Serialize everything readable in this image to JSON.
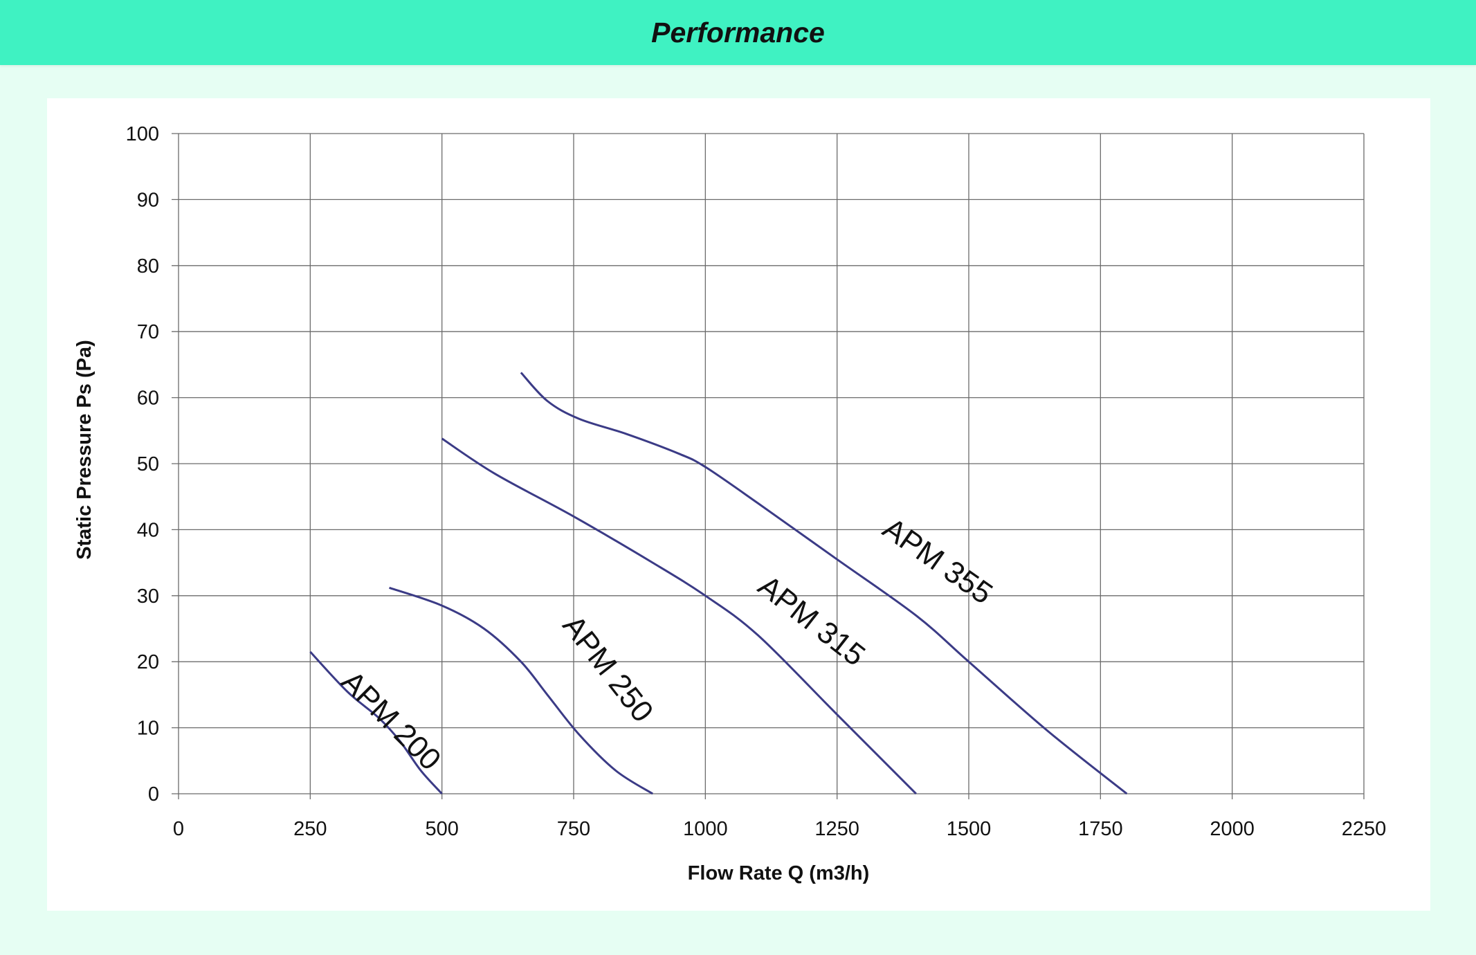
{
  "header": {
    "title": "Performance"
  },
  "colors": {
    "header_bg": "#3ff2c2",
    "page_bg": "#e6fef3",
    "grid": "#6b6b6b",
    "series": "#3b3b86"
  },
  "chart_data": {
    "type": "line",
    "xlabel": "Flow Rate Q (m3/h)",
    "ylabel": "Static Pressure Ps (Pa)",
    "xlim": [
      0,
      2250
    ],
    "ylim": [
      0,
      100
    ],
    "x_ticks": [
      0,
      250,
      500,
      750,
      1000,
      1250,
      1500,
      1750,
      2000,
      2250
    ],
    "y_ticks": [
      0,
      10,
      20,
      30,
      40,
      50,
      60,
      70,
      80,
      90,
      100
    ],
    "grid": true,
    "legend": "none",
    "series": [
      {
        "name": "APM 200",
        "points": [
          [
            250,
            21.5
          ],
          [
            320,
            15.5
          ],
          [
            380,
            11.5
          ],
          [
            420,
            8
          ],
          [
            460,
            3.5
          ],
          [
            500,
            0
          ]
        ]
      },
      {
        "name": "APM 250",
        "points": [
          [
            400,
            31.2
          ],
          [
            500,
            28.5
          ],
          [
            580,
            25
          ],
          [
            650,
            20
          ],
          [
            700,
            15
          ],
          [
            760,
            9
          ],
          [
            830,
            3.5
          ],
          [
            900,
            0
          ]
        ]
      },
      {
        "name": "APM 315",
        "points": [
          [
            500,
            53.8
          ],
          [
            600,
            48.5
          ],
          [
            750,
            42
          ],
          [
            900,
            35
          ],
          [
            1000,
            30
          ],
          [
            1100,
            24
          ],
          [
            1250,
            12
          ],
          [
            1400,
            0
          ]
        ]
      },
      {
        "name": "APM 355",
        "points": [
          [
            650,
            63.8
          ],
          [
            700,
            59.5
          ],
          [
            760,
            56.8
          ],
          [
            850,
            54.5
          ],
          [
            950,
            51.5
          ],
          [
            1000,
            49.5
          ],
          [
            1100,
            44
          ],
          [
            1250,
            35.5
          ],
          [
            1400,
            27
          ],
          [
            1500,
            20
          ],
          [
            1650,
            9.5
          ],
          [
            1800,
            0
          ]
        ]
      }
    ]
  }
}
